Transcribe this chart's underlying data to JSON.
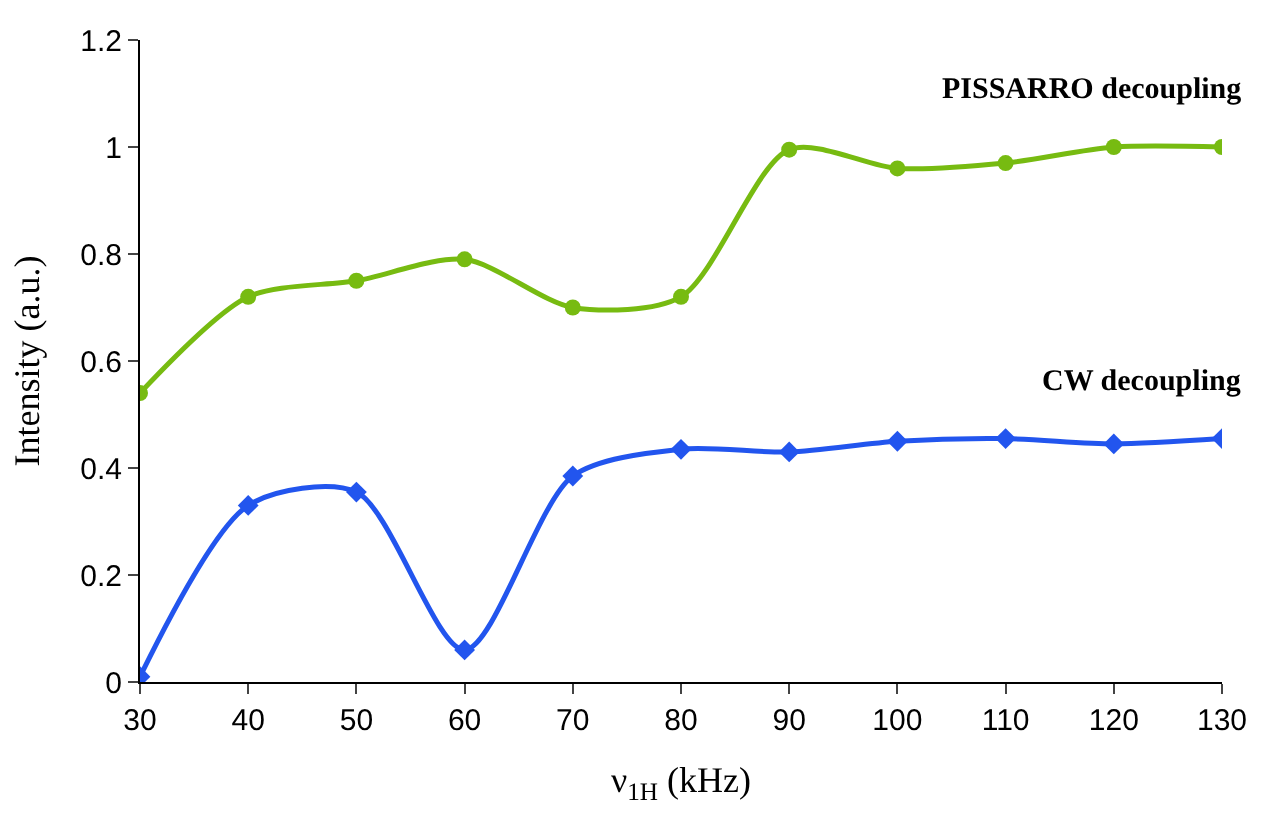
{
  "chart_data": {
    "type": "line",
    "xlabel": "ν$_{1H}$ (kHz)",
    "ylabel": "Intensity (a.u.)",
    "x": [
      30,
      40,
      50,
      60,
      70,
      80,
      90,
      100,
      110,
      120,
      130
    ],
    "xlim": [
      30,
      130
    ],
    "xticks": [
      30,
      40,
      50,
      60,
      70,
      80,
      90,
      100,
      110,
      120,
      130
    ],
    "ylim": [
      0,
      1.2
    ],
    "yticks": [
      0,
      0.2,
      0.4,
      0.6,
      0.8,
      1,
      1.2
    ],
    "legend": false,
    "series": [
      {
        "name": "PISSARRO decoupling",
        "color": "#77bb11",
        "marker": "circle",
        "values": [
          0.54,
          0.72,
          0.75,
          0.79,
          0.7,
          0.72,
          0.995,
          0.96,
          0.97,
          1.0,
          1.0
        ]
      },
      {
        "name": "CW decoupling",
        "color": "#2255ee",
        "marker": "diamond",
        "values": [
          0.01,
          0.33,
          0.355,
          0.06,
          0.385,
          0.435,
          0.43,
          0.45,
          0.455,
          0.445,
          0.455
        ]
      }
    ]
  }
}
